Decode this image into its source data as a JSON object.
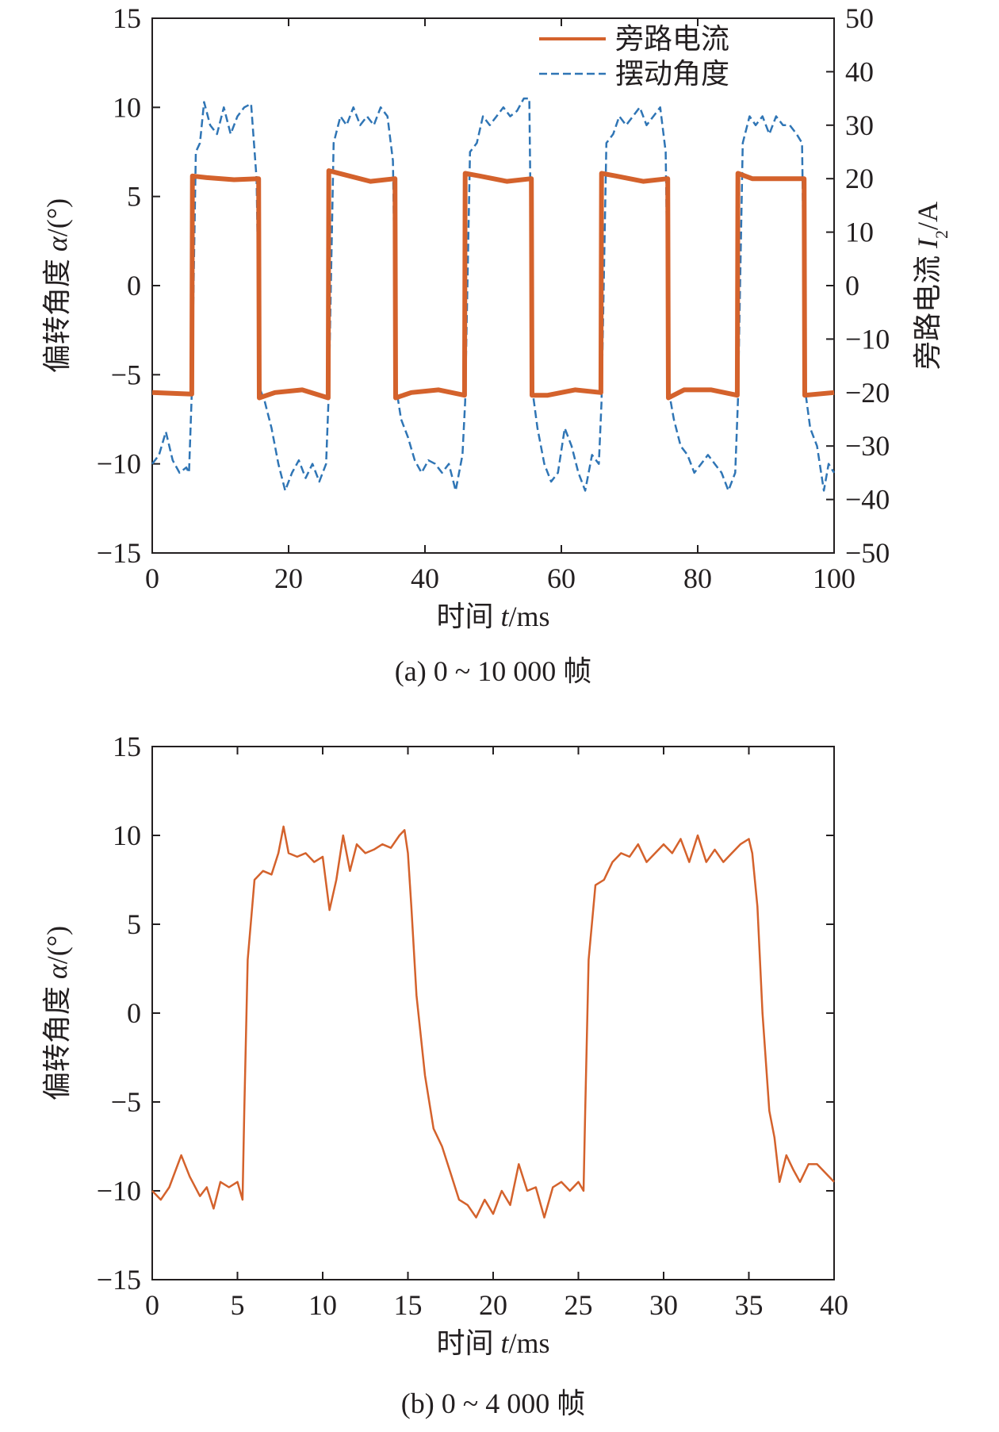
{
  "chart_data": [
    {
      "type": "line",
      "caption": "(a) 0 ~ 10 000 帧",
      "xlabel": "时间 t/ms",
      "ylabel": "偏转角度 α/(°)",
      "y2label": "旁路电流 I2/A",
      "xlim": [
        0,
        100
      ],
      "ylim": [
        -15,
        15
      ],
      "y2lim": [
        -50,
        50
      ],
      "xticks": [
        "0",
        "20",
        "40",
        "60",
        "80",
        "100"
      ],
      "yticks": [
        "−15",
        "−10",
        "−5",
        "0",
        "5",
        "10",
        "15"
      ],
      "y2ticks": [
        "−50",
        "−40",
        "−30",
        "−20",
        "−10",
        "0",
        "10",
        "20",
        "30",
        "40",
        "50"
      ],
      "legend_position": "top-right",
      "grid": false,
      "series": [
        {
          "name": "旁路电流",
          "axis": "right",
          "color": "#d4622c",
          "style": "solid",
          "x": [
            0,
            5.8,
            5.9,
            8,
            12,
            15.6,
            15.7,
            18,
            22,
            25.8,
            25.9,
            28,
            32,
            35.6,
            35.7,
            38,
            42,
            45.8,
            45.9,
            48,
            52,
            55.6,
            55.7,
            58,
            62,
            65.8,
            65.9,
            68,
            72,
            75.6,
            75.7,
            78,
            82,
            85.8,
            85.9,
            88,
            92,
            95.6,
            95.7,
            100
          ],
          "values": [
            -20,
            -20.3,
            20.5,
            20.2,
            19.8,
            20.0,
            -21,
            -20,
            -19.5,
            -21,
            21.5,
            20.8,
            19.5,
            20.0,
            -21,
            -20,
            -19.5,
            -20.5,
            21,
            20.5,
            19.5,
            20.0,
            -20.5,
            -20.5,
            -19.5,
            -20,
            21,
            20.5,
            19.5,
            20.0,
            -21,
            -19.5,
            -19.5,
            -20.5,
            21,
            20.0,
            20.0,
            20.0,
            -20.5,
            -20
          ]
        },
        {
          "name": "摆动角度",
          "axis": "left",
          "color": "#2f75b5",
          "style": "dashed",
          "x": [
            0,
            1,
            2,
            3,
            4,
            5,
            5.4,
            5.8,
            6.4,
            7,
            7.6,
            8.5,
            9.5,
            10.5,
            11.5,
            12.5,
            13.5,
            14.5,
            15.3,
            15.8,
            16.5,
            17.5,
            18.5,
            19.5,
            20.5,
            21.5,
            22.5,
            23.5,
            24.5,
            25.5,
            25.9,
            26.6,
            27.6,
            28.5,
            29.5,
            30.5,
            31.5,
            32.5,
            33.5,
            34.5,
            35.3,
            35.8,
            36.5,
            37.5,
            38.5,
            39.5,
            40.5,
            41.5,
            42.5,
            43.5,
            44.5,
            45.5,
            45.9,
            46.6,
            47.6,
            48.5,
            49.5,
            50.5,
            51.5,
            52.5,
            53.5,
            54.5,
            55.3,
            55.8,
            56.5,
            57.5,
            58.5,
            59.5,
            60.5,
            61.5,
            62.5,
            63.5,
            64.5,
            65.5,
            65.9,
            66.6,
            67.6,
            68.5,
            69.5,
            70.5,
            71.5,
            72.5,
            73.5,
            74.5,
            75.3,
            75.8,
            76.5,
            77.5,
            78.5,
            79.5,
            80.5,
            81.5,
            82.5,
            83.5,
            84.5,
            85.5,
            85.9,
            86.6,
            87.6,
            88.5,
            89.5,
            90.5,
            91.5,
            92.5,
            93.5,
            94.5,
            95.3,
            95.8,
            96.5,
            97.5,
            98.5,
            99.2,
            100
          ],
          "values": [
            -10,
            -9.5,
            -8.2,
            -9.8,
            -10.5,
            -10.2,
            -10.5,
            -6,
            7.5,
            8,
            10.3,
            9,
            8.5,
            10,
            8.5,
            9.5,
            10,
            10.2,
            6,
            -5.8,
            -6.5,
            -8,
            -10,
            -11.5,
            -10.5,
            -9.8,
            -10.8,
            -10,
            -11,
            -10,
            -6,
            8,
            9.5,
            9,
            10,
            9,
            9.5,
            9,
            10,
            9.5,
            7,
            -5.8,
            -7.5,
            -8.5,
            -9.8,
            -10.5,
            -9.8,
            -10,
            -10.5,
            -10,
            -11.5,
            -9.5,
            -6.5,
            7.5,
            8,
            9.5,
            9,
            9.5,
            10,
            9.5,
            9.8,
            10.5,
            10.5,
            -6,
            -8,
            -10,
            -11,
            -10.5,
            -8,
            -9,
            -10.5,
            -11.5,
            -9.5,
            -10,
            -6.5,
            8,
            8.5,
            9.5,
            9,
            9.5,
            10,
            9,
            9.5,
            10,
            7.5,
            -6,
            -7.5,
            -9,
            -9.5,
            -10.5,
            -10,
            -9.5,
            -10,
            -10.5,
            -11.5,
            -10.5,
            -6.5,
            8,
            9.5,
            9,
            9.5,
            8.5,
            9.5,
            9,
            9,
            8.5,
            8,
            -6,
            -8,
            -9,
            -11.5,
            -10,
            -10.5
          ]
        }
      ]
    },
    {
      "type": "line",
      "caption": "(b) 0 ~ 4 000 帧",
      "xlabel": "时间 t/ms",
      "ylabel": "偏转角度 α/(°)",
      "xlim": [
        0,
        40
      ],
      "ylim": [
        -15,
        15
      ],
      "xticks": [
        "0",
        "5",
        "10",
        "15",
        "20",
        "25",
        "30",
        "35",
        "40"
      ],
      "yticks": [
        "−15",
        "−10",
        "−5",
        "0",
        "5",
        "10",
        "15"
      ],
      "grid": false,
      "series": [
        {
          "color": "#d4622c",
          "style": "solid",
          "x": [
            0,
            0.5,
            1.0,
            1.7,
            2.2,
            2.8,
            3.2,
            3.6,
            4.0,
            4.5,
            5.0,
            5.3,
            5.4,
            5.6,
            6.0,
            6.5,
            7.0,
            7.4,
            7.7,
            8.0,
            8.5,
            9.0,
            9.5,
            10.0,
            10.4,
            10.8,
            11.2,
            11.6,
            12.0,
            12.5,
            13.0,
            13.5,
            14.0,
            14.5,
            14.8,
            15.0,
            15.2,
            15.5,
            16.0,
            16.5,
            17.0,
            17.5,
            18.0,
            18.5,
            19.0,
            19.5,
            20.0,
            20.5,
            21.0,
            21.5,
            22.0,
            22.5,
            23.0,
            23.5,
            24.0,
            24.5,
            25.0,
            25.3,
            25.4,
            25.6,
            26.0,
            26.5,
            27.0,
            27.5,
            28.0,
            28.5,
            29.0,
            29.5,
            30.0,
            30.5,
            31.0,
            31.5,
            32.0,
            32.5,
            33.0,
            33.5,
            34.0,
            34.5,
            35.0,
            35.2,
            35.5,
            35.8,
            36.2,
            36.5,
            36.8,
            37.2,
            37.6,
            38.0,
            38.5,
            39.0,
            39.5,
            40.0
          ],
          "values": [
            -10,
            -10.5,
            -9.8,
            -8,
            -9.2,
            -10.3,
            -9.8,
            -11,
            -9.5,
            -9.8,
            -9.5,
            -10.5,
            -5.5,
            3,
            7.5,
            8,
            7.8,
            9,
            10.5,
            9,
            8.8,
            9,
            8.5,
            8.8,
            5.8,
            7.5,
            10,
            8,
            9.5,
            9,
            9.2,
            9.5,
            9.3,
            10,
            10.3,
            9,
            6,
            1,
            -3.5,
            -6.5,
            -7.5,
            -9,
            -10.5,
            -10.8,
            -11.5,
            -10.5,
            -11.3,
            -10,
            -10.8,
            -8.5,
            -10,
            -9.8,
            -11.5,
            -9.8,
            -9.5,
            -10,
            -9.5,
            -10,
            -5.5,
            3,
            7.2,
            7.5,
            8.5,
            9,
            8.8,
            9.5,
            8.5,
            9,
            9.5,
            9,
            9.8,
            8.5,
            10,
            8.5,
            9.2,
            8.5,
            9,
            9.5,
            9.8,
            9,
            6,
            0,
            -5.5,
            -7,
            -9.5,
            -8,
            -8.8,
            -9.5,
            -8.5,
            -8.5,
            -9,
            -9.5
          ]
        }
      ]
    }
  ]
}
